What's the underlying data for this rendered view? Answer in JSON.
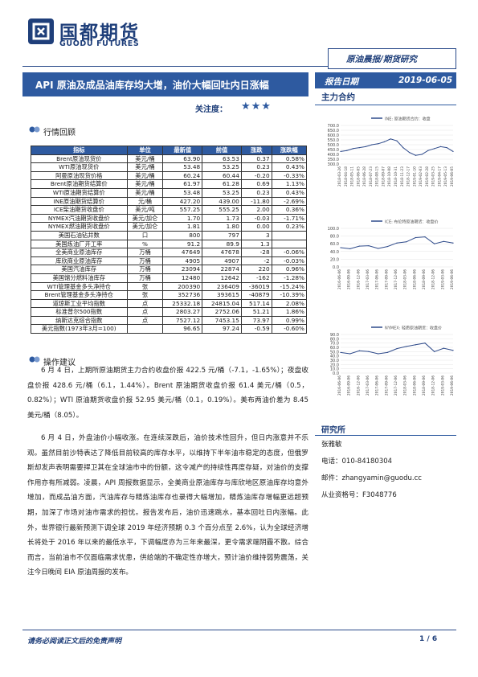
{
  "header": {
    "logo_cn": "国都期货",
    "logo_en": "GUODU FUTURES",
    "category": "原油晨报/期货研究",
    "title": "API 原油及成品油库存均大增，油价大幅回吐内日涨幅",
    "attention_label": "关注度：",
    "attention_stars": "★★★",
    "date_label": "报告日期",
    "date_value": "2019-06-05"
  },
  "sidebar": {
    "main_contract_heading": "主力合约",
    "research_heading": "研究所",
    "researcher": "张雅敏",
    "phone": "电话：010-84180304",
    "email": "邮件：zhangyamin@guodu.cc",
    "qualification": "从业资格号：F3048776"
  },
  "sections": {
    "market_review": "行情回顾",
    "operation_advice": "操作建议"
  },
  "table": {
    "headers": [
      "指标",
      "单位",
      "最新值",
      "前值",
      "涨跌",
      "涨跌幅"
    ],
    "rows": [
      [
        "Brent原油现货价",
        "美元/桶",
        "63.90",
        "63.53",
        "0.37",
        "0.58%"
      ],
      [
        "WTI原油现货价",
        "美元/桶",
        "53.48",
        "53.25",
        "0.23",
        "0.43%"
      ],
      [
        "阿曼原油现货价格",
        "美元/桶",
        "60.24",
        "60.44",
        "-0.20",
        "-0.33%"
      ],
      [
        "Brent原油期货结算价",
        "美元/桶",
        "61.97",
        "61.28",
        "0.69",
        "1.13%"
      ],
      [
        "WTI原油期货结算价",
        "美元/桶",
        "53.48",
        "53.25",
        "0.23",
        "0.43%"
      ],
      [
        "INE原油期货结算价",
        "元/桶",
        "427.20",
        "439.00",
        "-11.80",
        "-2.69%"
      ],
      [
        "ICE柴油期货收盘价",
        "美元/吨",
        "557.25",
        "555.25",
        "2.00",
        "0.36%"
      ],
      [
        "NYMEX汽油期货收盘价",
        "美元/加仑",
        "1.70",
        "1.73",
        "-0.03",
        "-1.71%"
      ],
      [
        "NYMEX燃油期货收盘价",
        "美元/加仑",
        "1.81",
        "1.80",
        "0.00",
        "0.23%"
      ],
      [
        "美国石油钻井数",
        "口",
        "800",
        "797",
        "3",
        ""
      ],
      [
        "美国炼油厂开工率",
        "%",
        "91.2",
        "89.9",
        "1.3",
        ""
      ],
      [
        "全美商业原油库存",
        "万桶",
        "47649",
        "47678",
        "-28",
        "-0.06%"
      ],
      [
        "库欣商业原油库存",
        "万桶",
        "4905",
        "4907",
        "-2",
        "-0.03%"
      ],
      [
        "美国汽油库存",
        "万桶",
        "23094",
        "22874",
        "220",
        "0.96%"
      ],
      [
        "美国馏分燃料油库存",
        "万桶",
        "12480",
        "12642",
        "-162",
        "-1.28%"
      ],
      [
        "WTI管理基金多头净持仓",
        "张",
        "200390",
        "236409",
        "-36019",
        "-15.24%"
      ],
      [
        "Brent管理基金多头净持仓",
        "张",
        "352736",
        "393615",
        "-40879",
        "-10.39%"
      ],
      [
        "道琼斯工业平均指数",
        "点",
        "25332.18",
        "24815.04",
        "517.14",
        "2.08%"
      ],
      [
        "标准普尔500指数",
        "点",
        "2803.27",
        "2752.06",
        "51.21",
        "1.86%"
      ],
      [
        "纳斯达克综合指数",
        "点",
        "7527.12",
        "7453.15",
        "73.97",
        "0.99%"
      ],
      [
        "美元指数(1973年3月=100)",
        "",
        "96.65",
        "97.24",
        "-0.59",
        "-0.60%"
      ]
    ]
  },
  "paragraphs": [
    "6 月 4 日，上期所原油期货主力合约收盘价报 422.5 元/桶（-7.1，-1.65%）；夜盘收盘价报 428.6 元/桶（6.1，1.44%）。Brent 原油期货收盘价报 61.4 美元/桶（0.5，0.82%）；WTI 原油期货收盘价报 52.95 美元/桶（0.1，0.19%）。美布两油价差为 8.45 美元/桶（8.05）。",
    "6 月 4 日，外盘油价小幅收涨。在连续深跌后，油价技术性回升，但日内涨意并不乐观。虽然目前沙特表达了降低目前较高的库存水平，以维持下半年油市稳定的态度，但俄罗斯却发声表明需要捍卫其在全球油市中的份额，这令减产的持续性再度存疑，对油价的支撑作用亦有所减弱。凌晨，API 周报数据显示，全美商业原油库存与库欣地区原油库存均意外增加，而成品油方面，汽油库存与精炼油库存也录得大幅增加，精炼油库存增幅更远超预期，加深了市场对油市需求的担忧。报告发布后，油价迅速跳水，基本回吐日内涨幅。此外，世界银行最新预测下调全球 2019 年经济预期 0.3 个百分点至 2.6%，认为全球经济增长将处于 2016 年以来的最低水平，下调幅度亦为三年来最深，更令需求端阴霾不散。综合而言，当前油市不仅面临需求忧患，供给端的不确定性亦增大，预计油价维持弱势震荡，关注今日晚间 EIA 原油周报的发布。"
  ],
  "footer": {
    "disclaimer": "请务必阅读正文后的免责声明",
    "page": "1 / 6"
  },
  "charts": [
    {
      "legend": "INE: 原油期货合约：收盘",
      "color": "#2e4a8a"
    },
    {
      "legend": "ICE: 布伦特原油期货：收盘价",
      "color": "#2e4a8a"
    },
    {
      "legend": "NYMEX: 轻质原油期货：收盘价",
      "color": "#2e4a8a"
    }
  ],
  "chart_data": [
    {
      "type": "line",
      "title": "",
      "series": [
        {
          "name": "INE: 原油期货合约：收盘"
        }
      ],
      "yticks": [
        "700.0",
        "650.0",
        "600.0",
        "550.0",
        "500.0",
        "450.0",
        "400.0",
        "350.0",
        "300.0"
      ],
      "ylim": [
        300,
        700
      ],
      "x": [
        "2018-03-26",
        "2018-04-18",
        "2018-05-11",
        "2018-06-05",
        "2018-06-28",
        "2018-07-23",
        "2018-08-15",
        "2018-09-07",
        "2018-10-08",
        "2018-10-31",
        "2018-11-23",
        "2018-12-17",
        "2019-01-10",
        "2019-02-03",
        "2019-02-28",
        "2019-03-25",
        "2019-04-17",
        "2019-05-13",
        "2019-06-05"
      ],
      "values": [
        430,
        440,
        460,
        470,
        480,
        500,
        510,
        530,
        560,
        540,
        470,
        420,
        390,
        400,
        440,
        460,
        480,
        470,
        430
      ]
    },
    {
      "type": "line",
      "title": "",
      "series": [
        {
          "name": "ICE: 布伦特原油期货：收盘价"
        }
      ],
      "yticks": [
        "100.0",
        "80.0",
        "60.0",
        "40.0",
        "20.0",
        "0.0"
      ],
      "ylim": [
        0,
        100
      ],
      "x": [
        "2016-06-06",
        "2016-09-06",
        "2016-12-06",
        "2017-03-06",
        "2017-06-06",
        "2017-09-06",
        "2017-12-06",
        "2018-03-06",
        "2018-06-06",
        "2018-09-06",
        "2018-12-06",
        "2019-03-06",
        "2019-06-06"
      ],
      "values": [
        50,
        47,
        54,
        55,
        48,
        53,
        62,
        65,
        76,
        78,
        60,
        66,
        62
      ]
    },
    {
      "type": "line",
      "title": "",
      "series": [
        {
          "name": "NYMEX: 轻质原油期货：收盘价"
        }
      ],
      "yticks": [
        "90.0",
        "80.0",
        "70.0",
        "60.0",
        "50.0",
        "40.0",
        "30.0",
        "20.0",
        "10.0",
        "0.0"
      ],
      "ylim": [
        0,
        90
      ],
      "x": [
        "2016-06-06",
        "2016-09-06",
        "2016-12-06",
        "2017-03-06",
        "2017-06-06",
        "2017-09-06",
        "2017-12-06",
        "2018-03-06",
        "2018-06-06",
        "2018-09-06",
        "2018-12-06",
        "2019-03-06",
        "2019-06-06"
      ],
      "values": [
        48,
        45,
        52,
        50,
        45,
        48,
        57,
        62,
        66,
        70,
        50,
        58,
        53
      ]
    }
  ]
}
